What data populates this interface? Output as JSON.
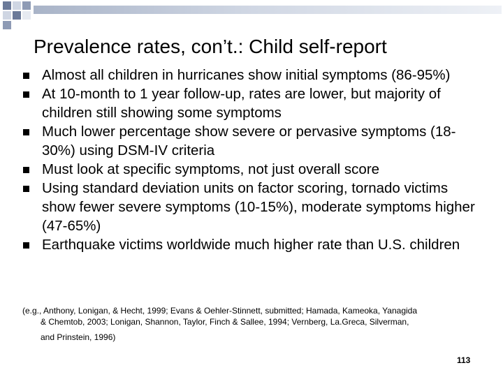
{
  "slide": {
    "title": "Prevalence rates, con’t.: Child self-report",
    "bullets": [
      "Almost all children in hurricanes show initial symptoms (86-95%)",
      "At 10-month to 1 year follow-up, rates are lower, but majority of children still showing some symptoms",
      "Much lower percentage show severe or pervasive symptoms (18-30%) using DSM-IV  criteria",
      "Must look at specific symptoms, not just overall score",
      "Using standard deviation units on factor scoring, tornado victims show fewer severe symptoms (10-15%), moderate symptoms higher (47-65%)",
      "Earthquake victims worldwide much higher rate than U.S. children"
    ],
    "citation_line1": "(e.g., Anthony, Lonigan, & Hecht, 1999; Evans & Oehler-Stinnett, submitted; Hamada, Kameoka, Yanagida",
    "citation_line2": "& Chemtob, 2003; Lonigan, Shannon, Taylor, Finch & Sallee, 1994; Vernberg, La.Greca, Silverman,",
    "citation_line3": "and Prinstein, 1996)",
    "page_number": "113"
  },
  "colors": {
    "decor_dark": "#6b7a99",
    "decor_light": "#cfd6e3"
  }
}
